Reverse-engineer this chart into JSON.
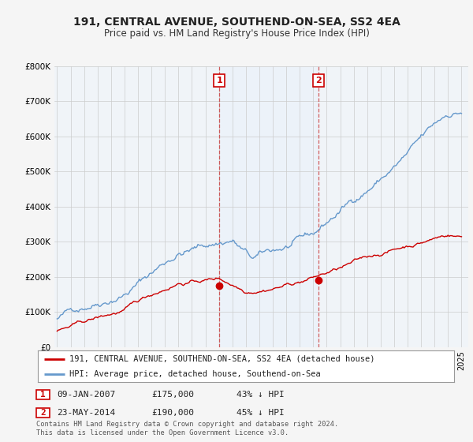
{
  "title": "191, CENTRAL AVENUE, SOUTHEND-ON-SEA, SS2 4EA",
  "subtitle": "Price paid vs. HM Land Registry's House Price Index (HPI)",
  "ylim": [
    0,
    800000
  ],
  "yticks": [
    0,
    100000,
    200000,
    300000,
    400000,
    500000,
    600000,
    700000,
    800000
  ],
  "ytick_labels": [
    "£0",
    "£100K",
    "£200K",
    "£300K",
    "£400K",
    "£500K",
    "£600K",
    "£700K",
    "£800K"
  ],
  "background_color": "#f5f5f5",
  "plot_bg_color": "#f0f4f8",
  "grid_color": "#cccccc",
  "sale1_date": 2007.03,
  "sale1_price": 175000,
  "sale2_date": 2014.39,
  "sale2_price": 190000,
  "sale1_label": "09-JAN-2007",
  "sale1_amount": "£175,000",
  "sale1_pct": "43% ↓ HPI",
  "sale2_label": "23-MAY-2014",
  "sale2_amount": "£190,000",
  "sale2_pct": "45% ↓ HPI",
  "legend1": "191, CENTRAL AVENUE, SOUTHEND-ON-SEA, SS2 4EA (detached house)",
  "legend2": "HPI: Average price, detached house, Southend-on-Sea",
  "footer": "Contains HM Land Registry data © Crown copyright and database right 2024.\nThis data is licensed under the Open Government Licence v3.0.",
  "price_color": "#cc0000",
  "hpi_color": "#6699cc",
  "shade_color": "#ddeeff"
}
